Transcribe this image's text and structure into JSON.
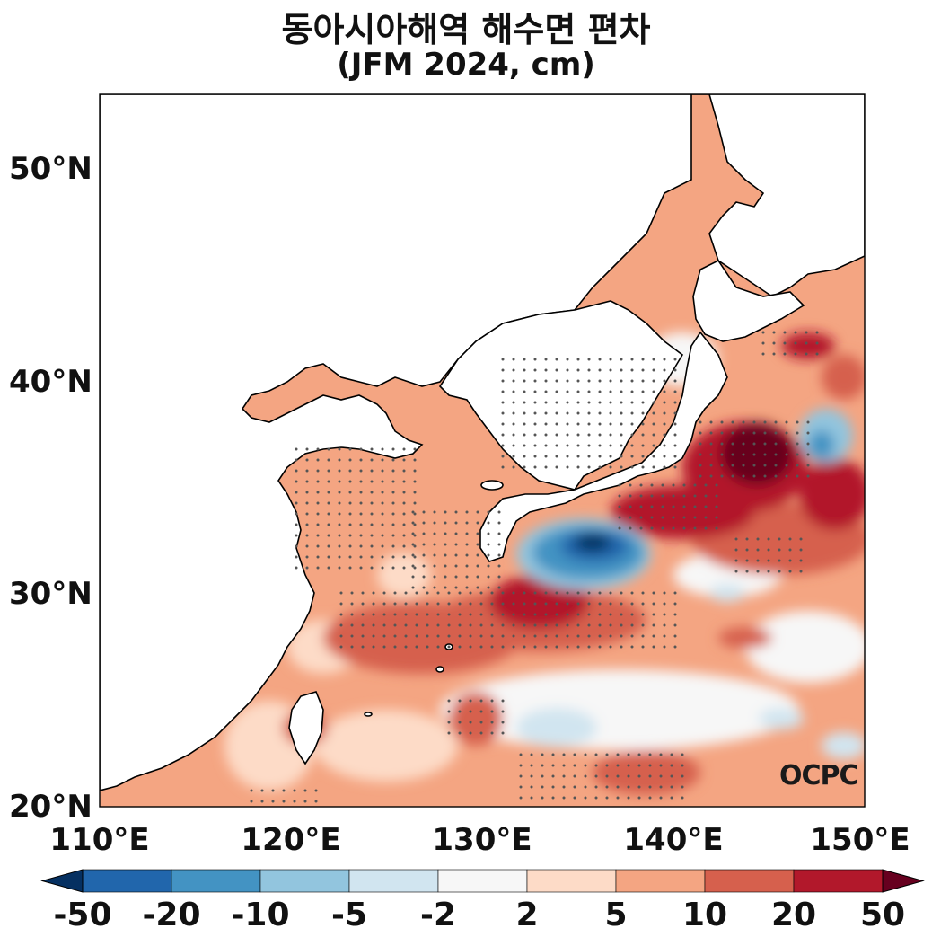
{
  "title": "동아시아해역 해수면 편차",
  "subtitle": "(JFM 2024, cm)",
  "watermark": "OCPC",
  "lat_labels": [
    "50°N",
    "40°N",
    "30°N",
    "20°N"
  ],
  "lon_labels": [
    "110°E",
    "120°E",
    "130°E",
    "140°E",
    "150°E"
  ],
  "colorbar": {
    "labels": [
      "-50",
      "-20",
      "-10",
      "-5",
      "-2",
      "2",
      "5",
      "10",
      "20",
      "50"
    ],
    "colors": [
      "#2166ac",
      "#4393c3",
      "#92c5de",
      "#d1e5f0",
      "#f7f7f7",
      "#fddbc7",
      "#f4a582",
      "#d6604d",
      "#b2182b"
    ],
    "extend_low_color": "#053061",
    "extend_high_color": "#67001f"
  },
  "colors": {
    "land": "#ffffff",
    "coast": "#000000",
    "dots": "#555555"
  }
}
